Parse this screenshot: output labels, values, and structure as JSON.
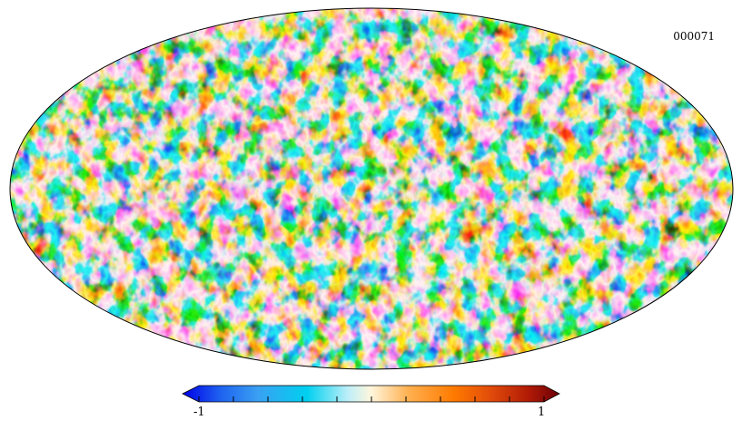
{
  "map": {
    "id_label": "000071",
    "projection": "mollweide"
  },
  "colorbar": {
    "min_label": "-1",
    "max_label": "1",
    "stops": [
      "#0000e6",
      "#1e62f0",
      "#3aa0f2",
      "#00d0f0",
      "#bfeff8",
      "#fff6dc",
      "#ffb050",
      "#ff7a00",
      "#e04a0a",
      "#b01a06",
      "#6a0008"
    ]
  }
}
